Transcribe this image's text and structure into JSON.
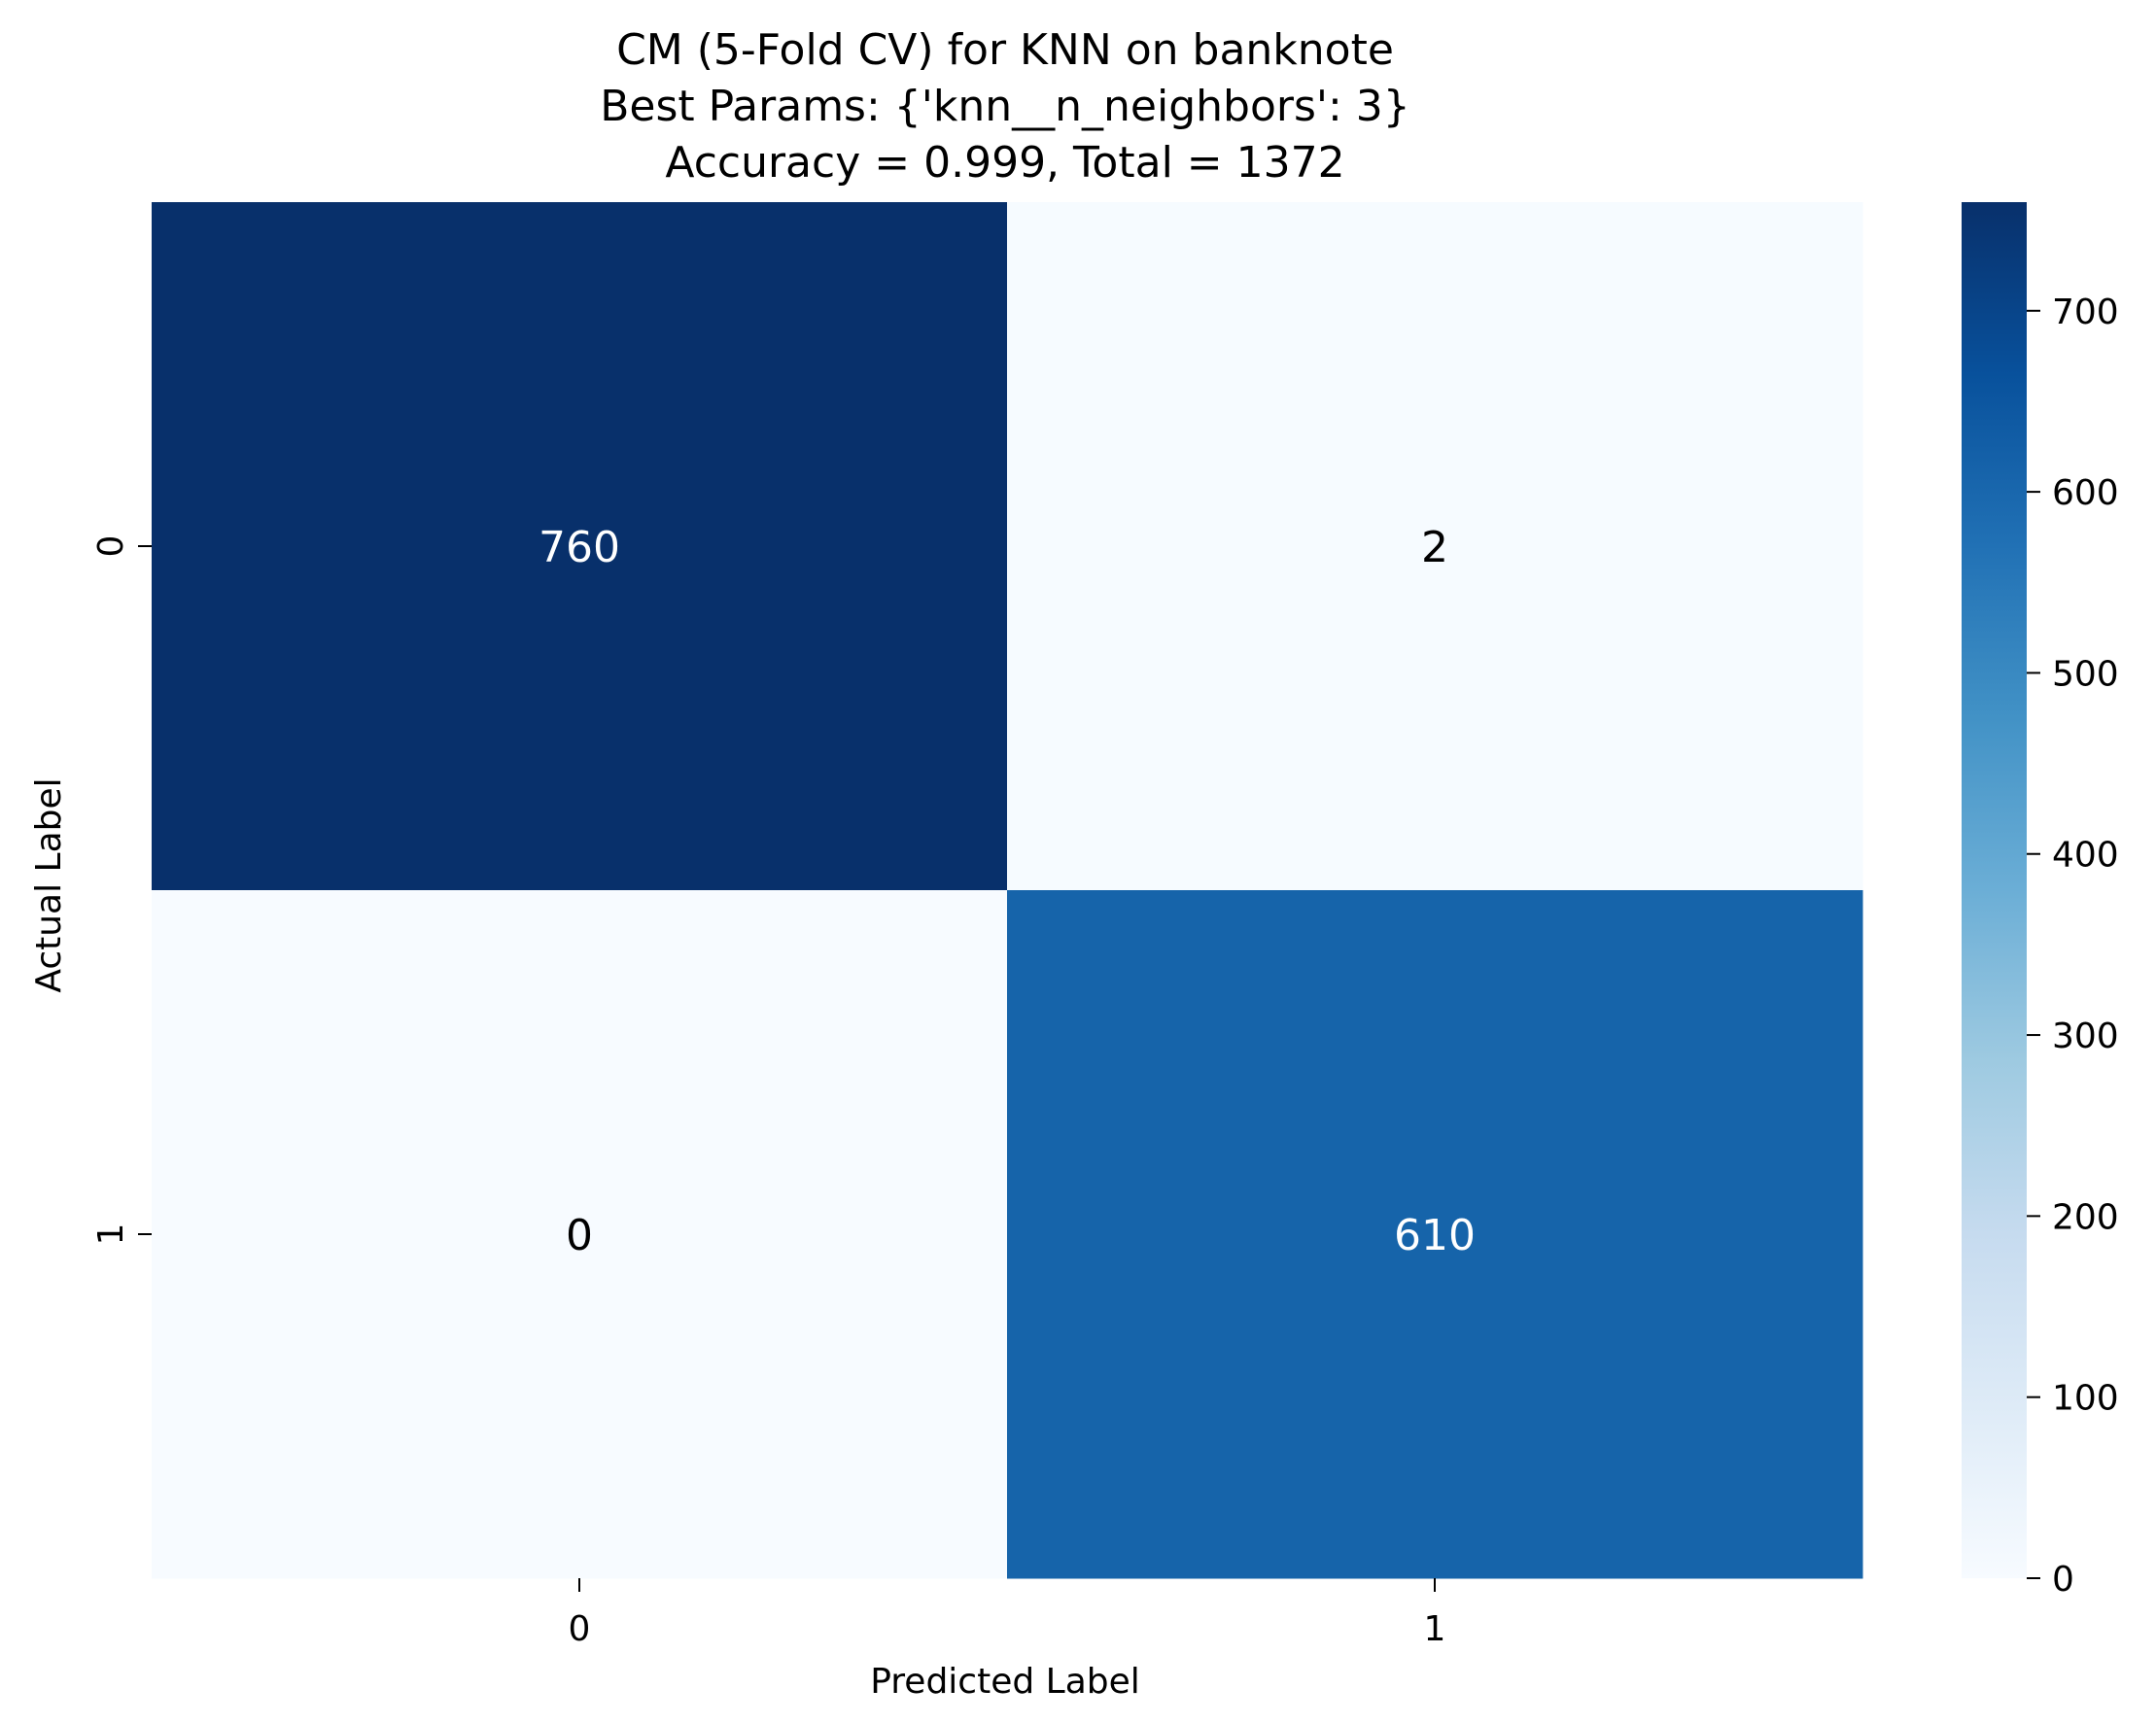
{
  "chart_data": {
    "type": "heatmap",
    "title_lines": [
      "CM (5-Fold CV) for KNN on banknote",
      "Best Params: {'knn__n_neighbors': 3}",
      "Accuracy = 0.999, Total = 1372"
    ],
    "xlabel": "Predicted Label",
    "ylabel": "Actual Label",
    "x_categories": [
      "0",
      "1"
    ],
    "y_categories": [
      "0",
      "1"
    ],
    "values": [
      [
        760,
        2
      ],
      [
        0,
        610
      ]
    ],
    "colormap": "Blues",
    "colorbar": {
      "range": [
        0,
        760
      ],
      "ticks": [
        0,
        100,
        200,
        300,
        400,
        500,
        600,
        700
      ]
    },
    "legend": "none",
    "grid": false
  }
}
